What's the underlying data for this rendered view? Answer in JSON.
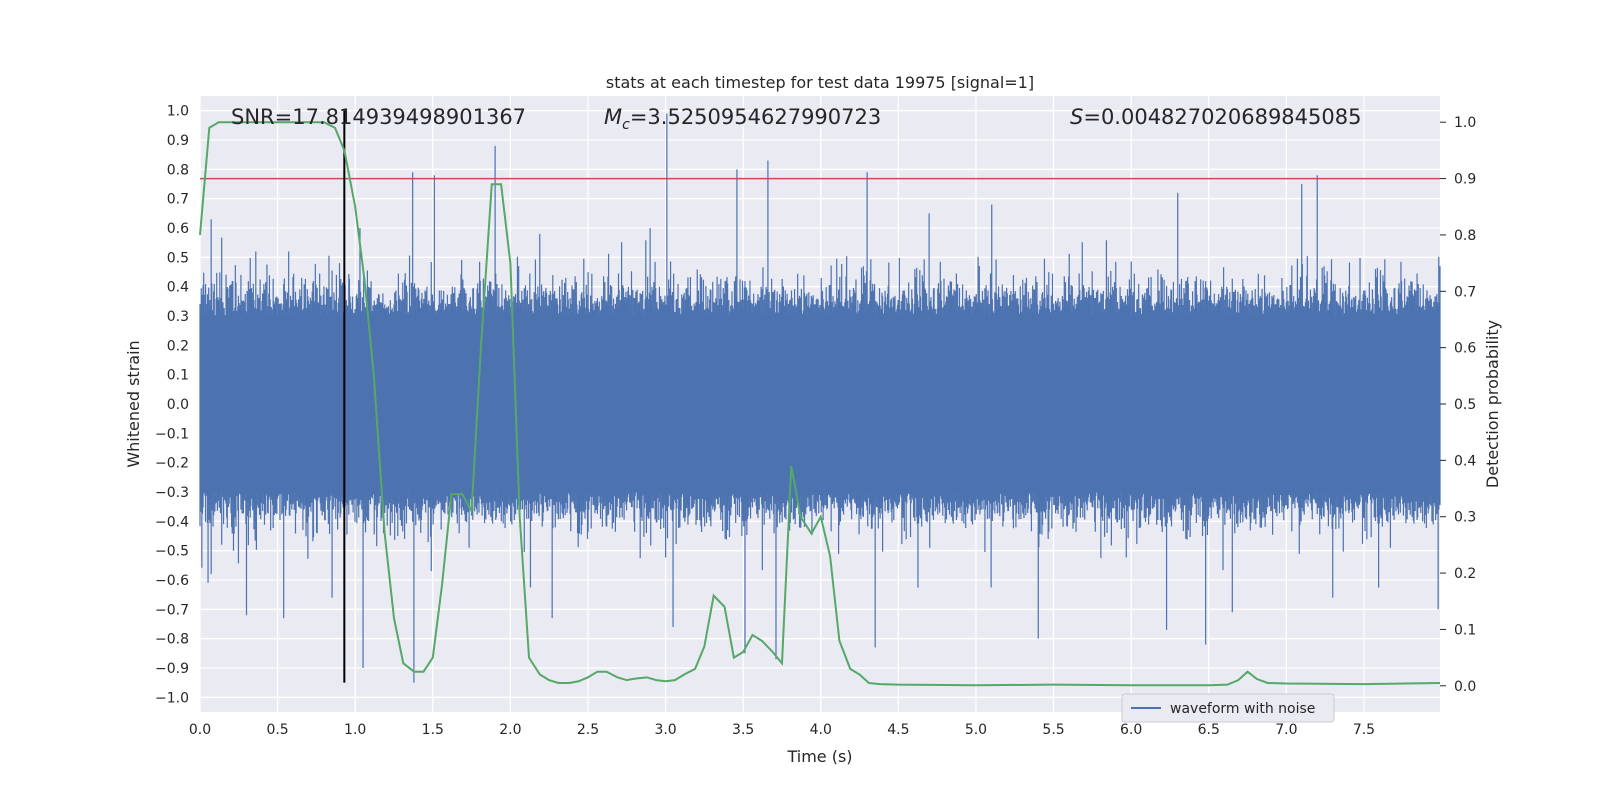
{
  "chart_data": {
    "type": "line",
    "title": "stats at each timestep for test data 19975 [signal=1]",
    "xlabel": "Time (s)",
    "ylabel_left": "Whitened strain",
    "ylabel_right": "Detection probability",
    "xlim": [
      0.0,
      7.99
    ],
    "ylim_left": [
      -1.05,
      1.05
    ],
    "ylim_right": [
      -0.0465,
      1.0465
    ],
    "x_ticks": [
      0.0,
      0.5,
      1.0,
      1.5,
      2.0,
      2.5,
      3.0,
      3.5,
      4.0,
      4.5,
      5.0,
      5.5,
      6.0,
      6.5,
      7.0,
      7.5
    ],
    "x_tick_labels": [
      "0.0",
      "0.5",
      "1.0",
      "1.5",
      "2.0",
      "2.5",
      "3.0",
      "3.5",
      "4.0",
      "4.5",
      "5.0",
      "5.5",
      "6.0",
      "6.5",
      "7.0",
      "7.5"
    ],
    "y_left_ticks": [
      1.0,
      0.9,
      0.8,
      0.7,
      0.6,
      0.5,
      0.4,
      0.3,
      0.2,
      0.1,
      0.0,
      -0.1,
      -0.2,
      -0.3,
      -0.4,
      -0.5,
      -0.6,
      -0.7,
      -0.8,
      -0.9,
      -1.0
    ],
    "y_left_tick_labels": [
      "1.0",
      "0.9",
      "0.8",
      "0.7",
      "0.6",
      "0.5",
      "0.4",
      "0.3",
      "0.2",
      "0.1",
      "0.0",
      "−0.1",
      "−0.2",
      "−0.3",
      "−0.4",
      "−0.5",
      "−0.6",
      "−0.7",
      "−0.8",
      "−0.9",
      "−1.0"
    ],
    "y_right_ticks": [
      1.0,
      0.9,
      0.8,
      0.7,
      0.6,
      0.5,
      0.4,
      0.3,
      0.2,
      0.1,
      0.0
    ],
    "y_right_tick_labels": [
      "1.0",
      "0.9",
      "0.8",
      "0.7",
      "0.6",
      "0.5",
      "0.4",
      "0.3",
      "0.2",
      "0.1",
      "0.0"
    ],
    "grid": true,
    "legend": {
      "placement": "lower-right",
      "entries": [
        {
          "label": "waveform with noise",
          "color": "#4c72b0"
        }
      ]
    },
    "annotations": {
      "snr": "SNR=17.814939498901367",
      "mc_symbol": "M",
      "mc_sub": "c",
      "mc_value": "=3.5250954627990723",
      "s_symbol": "S",
      "s_value": "=0.004827020689845085"
    },
    "threshold_line": {
      "axis": "right",
      "y": 0.9,
      "color": "#c44e52"
    },
    "marker_line": {
      "x": 0.93,
      "y_range": [
        -0.95,
        1.0
      ],
      "color": "#000000"
    },
    "waveform": {
      "name": "waveform with noise",
      "color": "#4c72b0",
      "duration": 7.99,
      "band_typical": 0.3,
      "peaks": [
        [
          0.07,
          0.63
        ],
        [
          0.36,
          0.52
        ],
        [
          0.57,
          0.52
        ],
        [
          0.83,
          0.47
        ],
        [
          1.03,
          0.6
        ],
        [
          1.37,
          0.79
        ],
        [
          1.51,
          0.78
        ],
        [
          1.9,
          0.88
        ],
        [
          2.19,
          0.58
        ],
        [
          2.9,
          0.6
        ],
        [
          3.01,
          0.99
        ],
        [
          3.46,
          0.8
        ],
        [
          3.66,
          0.83
        ],
        [
          4.3,
          0.79
        ],
        [
          4.7,
          0.65
        ],
        [
          5.1,
          0.68
        ],
        [
          6.3,
          0.72
        ],
        [
          7.1,
          0.75
        ],
        [
          7.2,
          0.78
        ]
      ],
      "troughs": [
        [
          0.07,
          -0.58
        ],
        [
          0.3,
          -0.72
        ],
        [
          0.54,
          -0.73
        ],
        [
          0.85,
          -0.66
        ],
        [
          1.05,
          -0.9
        ],
        [
          1.38,
          -0.95
        ],
        [
          2.27,
          -0.73
        ],
        [
          3.05,
          -0.76
        ],
        [
          3.51,
          -0.85
        ],
        [
          3.71,
          -0.87
        ],
        [
          4.35,
          -0.83
        ],
        [
          5.4,
          -0.8
        ],
        [
          6.23,
          -0.77
        ],
        [
          6.48,
          -0.82
        ],
        [
          6.65,
          -0.71
        ],
        [
          7.3,
          -0.66
        ],
        [
          7.98,
          -0.7
        ]
      ]
    },
    "detection_probability": {
      "color": "#55a868",
      "x": [
        0.0,
        0.06,
        0.12,
        0.2,
        0.4,
        0.6,
        0.8,
        0.87,
        0.93,
        1.0,
        1.06,
        1.12,
        1.19,
        1.25,
        1.31,
        1.38,
        1.44,
        1.5,
        1.56,
        1.62,
        1.69,
        1.75,
        1.81,
        1.88,
        1.94,
        2.0,
        2.06,
        2.12,
        2.19,
        2.25,
        2.31,
        2.38,
        2.44,
        2.5,
        2.56,
        2.62,
        2.69,
        2.75,
        2.81,
        2.88,
        2.94,
        3.0,
        3.06,
        3.12,
        3.19,
        3.25,
        3.31,
        3.38,
        3.44,
        3.5,
        3.56,
        3.62,
        3.69,
        3.75,
        3.81,
        3.87,
        3.94,
        4.0,
        4.06,
        4.12,
        4.19,
        4.25,
        4.31,
        4.38,
        4.5,
        5.0,
        5.5,
        6.0,
        6.5,
        6.62,
        6.69,
        6.75,
        6.81,
        6.88,
        7.0,
        7.5,
        7.99
      ],
      "y": [
        0.8,
        0.99,
        1.0,
        1.0,
        1.0,
        1.0,
        1.0,
        0.99,
        0.95,
        0.85,
        0.72,
        0.55,
        0.27,
        0.12,
        0.04,
        0.025,
        0.025,
        0.05,
        0.18,
        0.34,
        0.34,
        0.31,
        0.6,
        0.89,
        0.89,
        0.75,
        0.3,
        0.05,
        0.02,
        0.01,
        0.005,
        0.005,
        0.008,
        0.015,
        0.025,
        0.025,
        0.015,
        0.01,
        0.013,
        0.015,
        0.01,
        0.008,
        0.01,
        0.02,
        0.03,
        0.07,
        0.16,
        0.14,
        0.05,
        0.06,
        0.09,
        0.08,
        0.06,
        0.04,
        0.39,
        0.3,
        0.27,
        0.3,
        0.23,
        0.08,
        0.03,
        0.02,
        0.005,
        0.003,
        0.002,
        0.001,
        0.002,
        0.001,
        0.001,
        0.002,
        0.01,
        0.025,
        0.012,
        0.005,
        0.004,
        0.003,
        0.005
      ]
    }
  }
}
